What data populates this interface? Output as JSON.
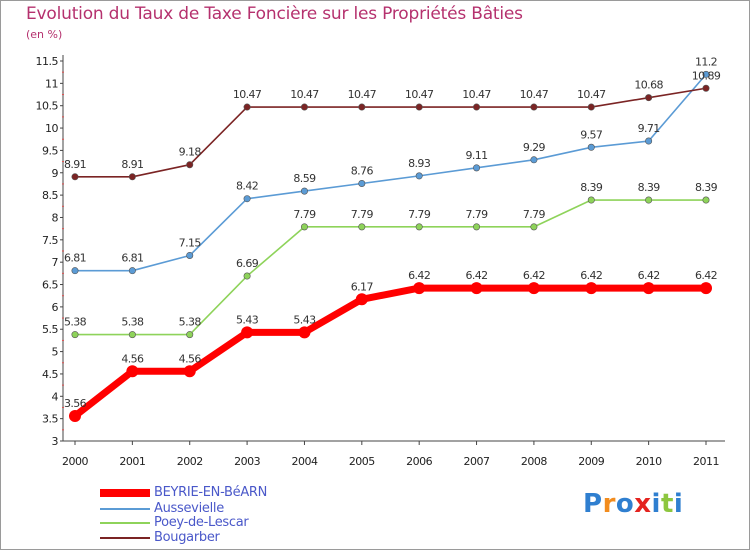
{
  "title": "Evolution du Taux de Taxe Foncière sur les Propriétés Bâties",
  "unit_label": "(en %)",
  "chart_data": {
    "type": "line",
    "x": [
      "2000",
      "2001",
      "2002",
      "2003",
      "2004",
      "2005",
      "2006",
      "2007",
      "2008",
      "2009",
      "2010",
      "2011"
    ],
    "y_ticks": [
      "3",
      "3.5",
      "4",
      "4.5",
      "5",
      "5.5",
      "6",
      "6.5",
      "7",
      "7.5",
      "8",
      "8.5",
      "9",
      "9.5",
      "10",
      "10.5",
      "11",
      "11.5"
    ],
    "ylim": [
      3,
      11.5
    ],
    "grid": false,
    "legend_position": "bottom-left",
    "series": [
      {
        "name": "BEYRIE-EN-BéARN",
        "color": "#ff0000",
        "style": "thick",
        "values": [
          3.56,
          4.56,
          4.56,
          5.43,
          5.43,
          6.17,
          6.42,
          6.42,
          6.42,
          6.42,
          6.42,
          6.42
        ],
        "labels": [
          "3.56",
          "4.56",
          "4.56",
          "5.43",
          "5.43",
          "6.17",
          "6.42",
          "6.42",
          "6.42",
          "6.42",
          "6.42",
          "6.42"
        ]
      },
      {
        "name": "Aussevielle",
        "color": "#5b9bd5",
        "style": "thin",
        "values": [
          6.81,
          6.81,
          7.15,
          8.42,
          8.59,
          8.76,
          8.93,
          9.11,
          9.29,
          9.57,
          9.71,
          11.2
        ],
        "labels": [
          "6.81",
          "6.81",
          "7.15",
          "8.42",
          "8.59",
          "8.76",
          "8.93",
          "9.11",
          "9.29",
          "9.57",
          "9.71",
          "11.2"
        ]
      },
      {
        "name": "Poey-de-Lescar",
        "color": "#8ed35a",
        "style": "thin",
        "values": [
          5.38,
          5.38,
          5.38,
          6.69,
          7.79,
          7.79,
          7.79,
          7.79,
          7.79,
          8.39,
          8.39,
          8.39
        ],
        "labels": [
          "5.38",
          "5.38",
          "5.38",
          "6.69",
          "7.79",
          "7.79",
          "7.79",
          "7.79",
          "7.79",
          "8.39",
          "8.39",
          "8.39"
        ]
      },
      {
        "name": "Bougarber",
        "color": "#7b2424",
        "style": "thin",
        "values": [
          8.91,
          8.91,
          9.18,
          10.47,
          10.47,
          10.47,
          10.47,
          10.47,
          10.47,
          10.47,
          10.68,
          10.89
        ],
        "labels": [
          "8.91",
          "8.91",
          "9.18",
          "10.47",
          "10.47",
          "10.47",
          "10.47",
          "10.47",
          "10.47",
          "10.47",
          "10.68",
          "10.89"
        ]
      }
    ]
  },
  "legend": {
    "items": [
      {
        "label": "BEYRIE-EN-BéARN",
        "color": "#ff0000"
      },
      {
        "label": "Aussevielle",
        "color": "#5b9bd5"
      },
      {
        "label": "Poey-de-Lescar",
        "color": "#8ed35a"
      },
      {
        "label": "Bougarber",
        "color": "#7b2424"
      }
    ]
  },
  "logo": {
    "text": "Proxiti",
    "letter_colors": [
      "#2f7fd0",
      "#f28c1e",
      "#2f7fd0",
      "#e4231f",
      "#2f7fd0",
      "#8dc63f",
      "#2f7fd0"
    ]
  }
}
